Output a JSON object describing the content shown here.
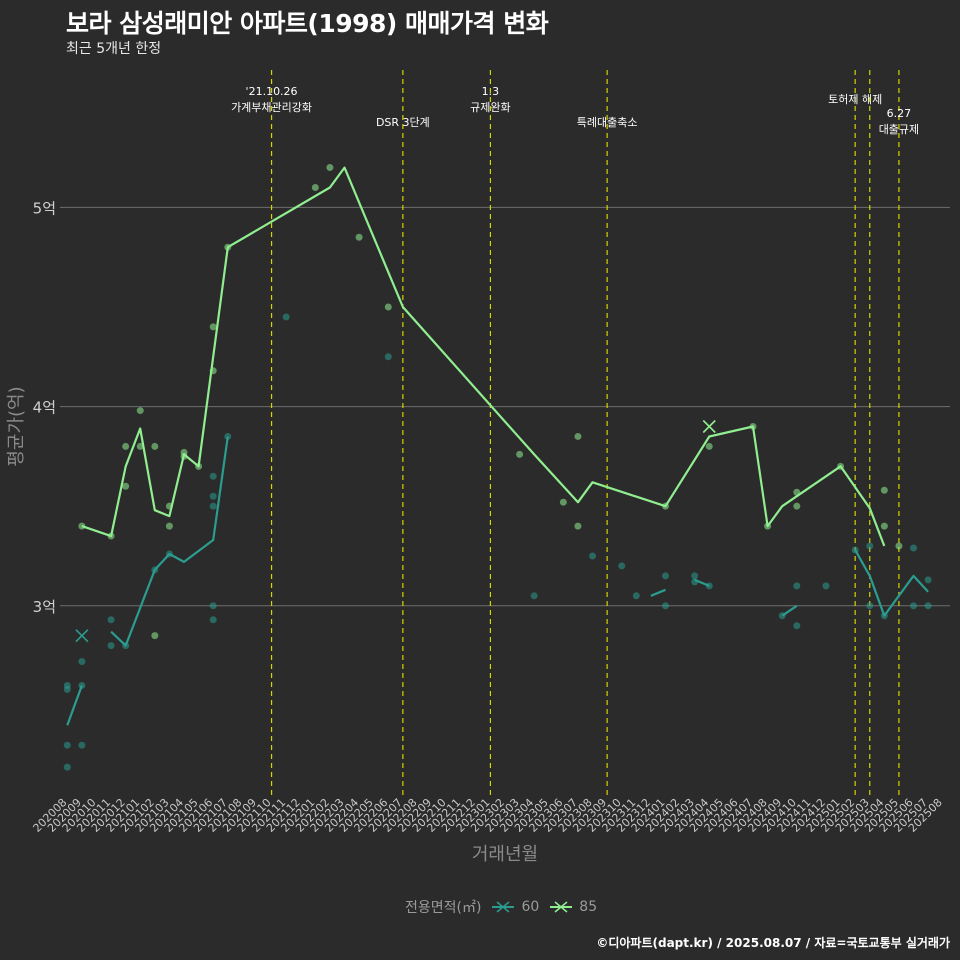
{
  "title": "보라 삼성래미안 아파트(1998) 매매가격 변화",
  "subtitle": "최근 5개년 한정",
  "caption": "©디아파트(dapt.kr) / 2025.08.07 / 자료=국토교통부 실거래가",
  "legend": {
    "title": "전용면적(㎡)",
    "items": [
      {
        "label": "60",
        "color": "#2a9d8f"
      },
      {
        "label": "85",
        "color": "#90ee90"
      }
    ]
  },
  "colors": {
    "background": "#2b2b2b",
    "grid": "#6e6e6e",
    "policy_line": "#d4d400",
    "series_60": "#2a9d8f",
    "series_85": "#90ee90"
  },
  "chart_data": {
    "type": "line",
    "xlabel": "거래년월",
    "ylabel": "평균가(억)",
    "ylim": [
      2.05,
      5.75
    ],
    "y_ticks": [
      {
        "value": 3,
        "label": "3억"
      },
      {
        "value": 4,
        "label": "4억"
      },
      {
        "value": 5,
        "label": "5억"
      }
    ],
    "x_categories": [
      "202008",
      "202009",
      "202010",
      "202011",
      "202012",
      "202101",
      "202102",
      "202103",
      "202104",
      "202105",
      "202106",
      "202107",
      "202108",
      "202109",
      "202110",
      "202111",
      "202112",
      "202201",
      "202202",
      "202203",
      "202204",
      "202205",
      "202206",
      "202207",
      "202208",
      "202209",
      "202210",
      "202211",
      "202212",
      "202301",
      "202302",
      "202303",
      "202304",
      "202305",
      "202306",
      "202307",
      "202308",
      "202309",
      "202310",
      "202311",
      "202312",
      "202401",
      "202402",
      "202403",
      "202404",
      "202405",
      "202406",
      "202407",
      "202408",
      "202409",
      "202410",
      "202411",
      "202412",
      "202501",
      "202502",
      "202503",
      "202504",
      "202505",
      "202506",
      "202507",
      "202508"
    ],
    "policy_events": [
      {
        "x": 14.0,
        "lines": [
          "'21.10.26",
          "가계부채관리강화"
        ],
        "label_row": 1
      },
      {
        "x": 23.0,
        "lines": [
          "DSR 3단계"
        ],
        "label_row": 2
      },
      {
        "x": 29.0,
        "lines": [
          "1.3",
          "규제완화"
        ],
        "label_row": 1
      },
      {
        "x": 37.0,
        "lines": [
          "특례대출축소"
        ],
        "label_row": 2
      },
      {
        "x": 54.0,
        "lines": [
          "토허제 해제"
        ],
        "label_row": 1
      },
      {
        "x": 55.0,
        "lines": [],
        "label_row": 1
      },
      {
        "x": 57.0,
        "lines": [
          "6.27",
          "대출규제"
        ],
        "label_row": 2
      }
    ],
    "series": [
      {
        "name": "60",
        "color": "#2a9d8f",
        "line_segments": [
          [
            [
              0,
              2.4
            ],
            [
              1,
              2.6
            ]
          ],
          [
            [
              3,
              2.87
            ],
            [
              4,
              2.8
            ],
            [
              6,
              3.18
            ],
            [
              7,
              3.26
            ],
            [
              8,
              3.22
            ],
            [
              10,
              3.33
            ],
            [
              11,
              3.85
            ]
          ],
          [
            [
              40,
              3.05
            ],
            [
              41,
              3.08
            ]
          ],
          [
            [
              43,
              3.13
            ],
            [
              44,
              3.1
            ]
          ],
          [
            [
              49,
              2.95
            ],
            [
              50,
              3.0
            ]
          ],
          [
            [
              54,
              3.28
            ],
            [
              55,
              3.15
            ],
            [
              56,
              2.95
            ],
            [
              58,
              3.15
            ],
            [
              59,
              3.07
            ]
          ]
        ],
        "points": [
          {
            "x": 0,
            "y": 2.58
          },
          {
            "x": 0,
            "y": 2.6
          },
          {
            "x": 0,
            "y": 2.3
          },
          {
            "x": 0,
            "y": 2.19
          },
          {
            "x": 1,
            "y": 2.72
          },
          {
            "x": 1,
            "y": 2.6
          },
          {
            "x": 1,
            "y": 2.3
          },
          {
            "x": 3,
            "y": 2.93
          },
          {
            "x": 3,
            "y": 2.8
          },
          {
            "x": 4,
            "y": 2.8
          },
          {
            "x": 6,
            "y": 3.18
          },
          {
            "x": 7,
            "y": 3.26
          },
          {
            "x": 10,
            "y": 3.65
          },
          {
            "x": 10,
            "y": 3.55
          },
          {
            "x": 10,
            "y": 3.5
          },
          {
            "x": 10,
            "y": 3.0
          },
          {
            "x": 10,
            "y": 2.93
          },
          {
            "x": 11,
            "y": 3.85
          },
          {
            "x": 15,
            "y": 4.45
          },
          {
            "x": 22,
            "y": 4.25
          },
          {
            "x": 32,
            "y": 3.05
          },
          {
            "x": 36,
            "y": 3.25
          },
          {
            "x": 38,
            "y": 3.2
          },
          {
            "x": 39,
            "y": 3.05
          },
          {
            "x": 41,
            "y": 3.15
          },
          {
            "x": 41,
            "y": 3.0
          },
          {
            "x": 43,
            "y": 3.15
          },
          {
            "x": 43,
            "y": 3.12
          },
          {
            "x": 44,
            "y": 3.1
          },
          {
            "x": 49,
            "y": 2.95
          },
          {
            "x": 50,
            "y": 3.1
          },
          {
            "x": 50,
            "y": 2.9
          },
          {
            "x": 52,
            "y": 3.1
          },
          {
            "x": 54,
            "y": 3.28
          },
          {
            "x": 55,
            "y": 3.3
          },
          {
            "x": 55,
            "y": 3.0
          },
          {
            "x": 56,
            "y": 2.95
          },
          {
            "x": 58,
            "y": 3.29
          },
          {
            "x": 58,
            "y": 3.0
          },
          {
            "x": 59,
            "y": 3.13
          },
          {
            "x": 59,
            "y": 3.0
          }
        ],
        "crosses": [
          {
            "x": 1,
            "y": 2.85
          }
        ]
      },
      {
        "name": "85",
        "color": "#90ee90",
        "line_segments": [
          [
            [
              1,
              3.4
            ],
            [
              3,
              3.35
            ],
            [
              4,
              3.7
            ],
            [
              5,
              3.89
            ],
            [
              6,
              3.48
            ],
            [
              7,
              3.45
            ],
            [
              8,
              3.76
            ],
            [
              9,
              3.7
            ],
            [
              11,
              4.8
            ],
            [
              18,
              5.1
            ],
            [
              19,
              5.2
            ],
            [
              21,
              4.85
            ],
            [
              23,
              4.5
            ],
            [
              32,
              3.76
            ],
            [
              35,
              3.52
            ],
            [
              36,
              3.62
            ],
            [
              41,
              3.5
            ],
            [
              44,
              3.85
            ],
            [
              47,
              3.9
            ],
            [
              48,
              3.4
            ],
            [
              49,
              3.5
            ],
            [
              53,
              3.7
            ],
            [
              55,
              3.49
            ],
            [
              56,
              3.3
            ]
          ]
        ],
        "points": [
          {
            "x": 1,
            "y": 3.4
          },
          {
            "x": 3,
            "y": 3.35
          },
          {
            "x": 4,
            "y": 3.8
          },
          {
            "x": 4,
            "y": 3.6
          },
          {
            "x": 5,
            "y": 3.98
          },
          {
            "x": 5,
            "y": 3.8
          },
          {
            "x": 6,
            "y": 3.8
          },
          {
            "x": 6,
            "y": 2.85
          },
          {
            "x": 7,
            "y": 3.5
          },
          {
            "x": 7,
            "y": 3.4
          },
          {
            "x": 8,
            "y": 3.77
          },
          {
            "x": 8,
            "y": 3.75
          },
          {
            "x": 9,
            "y": 3.7
          },
          {
            "x": 10,
            "y": 4.4
          },
          {
            "x": 10,
            "y": 4.18
          },
          {
            "x": 11,
            "y": 4.8
          },
          {
            "x": 17,
            "y": 5.1
          },
          {
            "x": 18,
            "y": 5.2
          },
          {
            "x": 20,
            "y": 4.85
          },
          {
            "x": 22,
            "y": 4.5
          },
          {
            "x": 31,
            "y": 3.76
          },
          {
            "x": 34,
            "y": 3.52
          },
          {
            "x": 35,
            "y": 3.85
          },
          {
            "x": 35,
            "y": 3.4
          },
          {
            "x": 41,
            "y": 3.5
          },
          {
            "x": 44,
            "y": 3.8
          },
          {
            "x": 47,
            "y": 3.9
          },
          {
            "x": 48,
            "y": 3.4
          },
          {
            "x": 50,
            "y": 3.57
          },
          {
            "x": 50,
            "y": 3.5
          },
          {
            "x": 53,
            "y": 3.7
          },
          {
            "x": 56,
            "y": 3.58
          },
          {
            "x": 56,
            "y": 3.4
          },
          {
            "x": 57,
            "y": 3.3
          }
        ],
        "crosses": [
          {
            "x": 44,
            "y": 3.9
          }
        ]
      }
    ]
  }
}
